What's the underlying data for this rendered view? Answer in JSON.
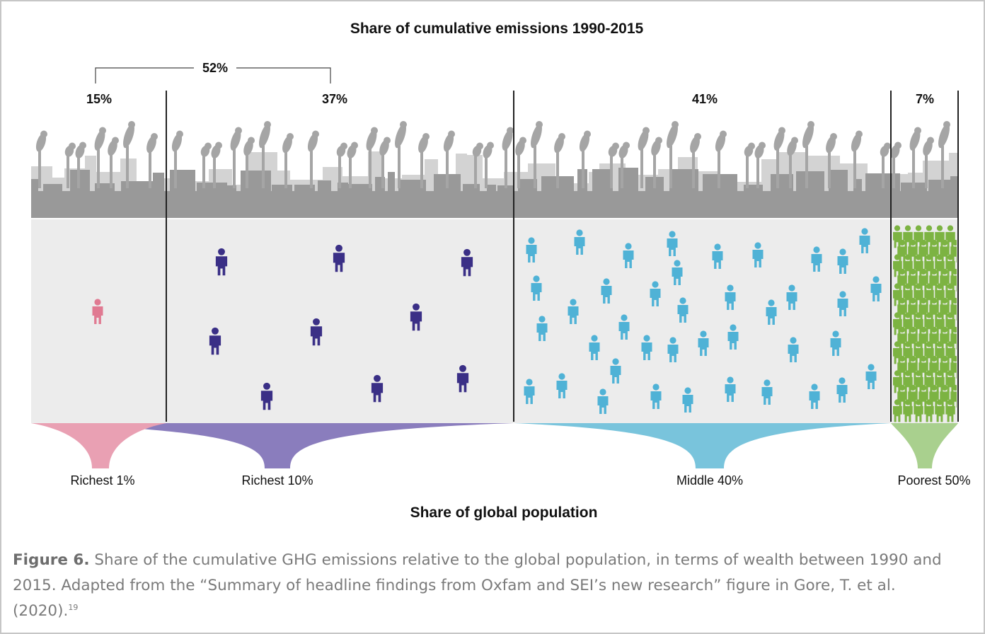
{
  "chart_data": {
    "type": "pictogram",
    "title": "Share of cumulative emissions 1990-2015",
    "xlabel": "Share of global population",
    "bracket": {
      "label": "52%",
      "groups": [
        "Richest 1%",
        "Richest 10%"
      ]
    },
    "groups": [
      {
        "name": "Richest 1%",
        "population_share": 1,
        "emissions_share": 15,
        "emissions_label": "15%",
        "color": "#e07a92",
        "funnel_color": "#e9a0b3"
      },
      {
        "name": "Richest 10%",
        "population_share": 10,
        "emissions_share": 37,
        "emissions_label": "37%",
        "color": "#3a2f86",
        "funnel_color": "#8a7dbd"
      },
      {
        "name": "Middle 40%",
        "population_share": 40,
        "emissions_share": 41,
        "emissions_label": "41%",
        "color": "#4fb2d6",
        "funnel_color": "#79c4dc"
      },
      {
        "name": "Poorest 50%",
        "population_share": 50,
        "emissions_share": 7,
        "emissions_label": "7%",
        "color": "#7cb342",
        "funnel_color": "#a9d08e"
      }
    ]
  },
  "caption": {
    "label": "Figure 6.",
    "text": " Share of the cumulative GHG emissions relative to the global population, in terms of wealth between 1990 and 2015. Adapted from the “Summary of headline findings from Oxfam and SEI’s new research” figure in Gore, T. et al. (2020).",
    "ref": "19"
  },
  "colors": {
    "smoke": "#a5a5a5",
    "skyline_back": "#d3d3d3",
    "skyline_front": "#999999",
    "panel": "#ececec",
    "divider": "#222222"
  }
}
